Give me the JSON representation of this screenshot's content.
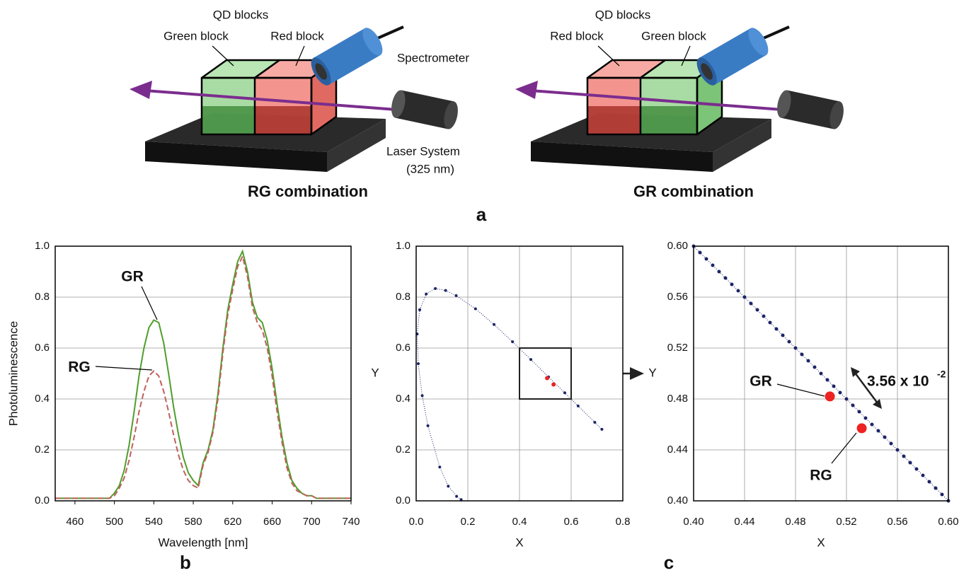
{
  "diagram": {
    "panel": "a",
    "left": {
      "group_label": "QD blocks",
      "block_left": "Green block",
      "block_right": "Red block",
      "spectrometer": "Spectrometer",
      "laser": "Laser System",
      "wavelength": "(325 nm)",
      "caption": "RG combination"
    },
    "right": {
      "group_label": "QD blocks",
      "block_left": "Red block",
      "block_right": "Green block",
      "caption": "GR combination"
    }
  },
  "panel_labels": [
    "b",
    "c"
  ],
  "chart_data": [
    {
      "type": "line",
      "xlabel": "Wavelength [nm]",
      "ylabel": "Photoluminescence",
      "x": [
        440,
        445,
        450,
        455,
        460,
        465,
        470,
        475,
        480,
        485,
        490,
        495,
        500,
        505,
        510,
        515,
        520,
        525,
        530,
        535,
        540,
        545,
        550,
        555,
        560,
        565,
        570,
        575,
        580,
        585,
        590,
        595,
        600,
        605,
        610,
        615,
        620,
        625,
        630,
        635,
        640,
        645,
        650,
        655,
        660,
        665,
        670,
        675,
        680,
        685,
        690,
        695,
        700,
        705,
        710,
        715,
        720,
        725,
        730,
        735,
        740
      ],
      "series": [
        {
          "name": "GR",
          "color": "#4f9e2c",
          "dashed": false,
          "values": [
            0.01,
            0.01,
            0.01,
            0.01,
            0.01,
            0.01,
            0.01,
            0.01,
            0.01,
            0.01,
            0.01,
            0.01,
            0.03,
            0.06,
            0.12,
            0.22,
            0.35,
            0.49,
            0.6,
            0.68,
            0.71,
            0.7,
            0.62,
            0.5,
            0.37,
            0.26,
            0.17,
            0.11,
            0.08,
            0.06,
            0.15,
            0.2,
            0.28,
            0.42,
            0.6,
            0.75,
            0.85,
            0.94,
            0.98,
            0.9,
            0.78,
            0.72,
            0.7,
            0.63,
            0.52,
            0.38,
            0.25,
            0.15,
            0.08,
            0.05,
            0.03,
            0.02,
            0.02,
            0.01,
            0.01,
            0.01,
            0.01,
            0.01,
            0.01,
            0.01,
            0.01
          ]
        },
        {
          "name": "RG",
          "color": "#c0605a",
          "dashed": true,
          "values": [
            0.01,
            0.01,
            0.01,
            0.01,
            0.01,
            0.01,
            0.01,
            0.01,
            0.01,
            0.01,
            0.01,
            0.01,
            0.02,
            0.05,
            0.09,
            0.16,
            0.25,
            0.35,
            0.43,
            0.49,
            0.51,
            0.49,
            0.43,
            0.35,
            0.26,
            0.18,
            0.12,
            0.08,
            0.06,
            0.05,
            0.14,
            0.19,
            0.27,
            0.4,
            0.58,
            0.73,
            0.83,
            0.92,
            0.96,
            0.88,
            0.76,
            0.7,
            0.67,
            0.6,
            0.49,
            0.35,
            0.23,
            0.13,
            0.07,
            0.04,
            0.03,
            0.02,
            0.02,
            0.01,
            0.01,
            0.01,
            0.01,
            0.01,
            0.01,
            0.01,
            0.01
          ]
        }
      ],
      "xlim": [
        440,
        740
      ],
      "xticks": [
        460,
        500,
        540,
        580,
        620,
        660,
        700,
        740
      ],
      "ylim": [
        0,
        1
      ],
      "yticks": [
        {
          "value": 0,
          "label": "0.0"
        },
        0.2,
        0.4,
        0.6,
        0.8,
        {
          "value": 1,
          "label": "1.0"
        }
      ],
      "grid": "y"
    },
    {
      "type": "scatter",
      "xlabel": "X",
      "ylabel": "Y",
      "series": [
        {
          "color": "#1c2466",
          "size": 2,
          "x": [
            0.1741,
            0.1566,
            0.1241,
            0.0913,
            0.0454,
            0.0235,
            0.0082,
            0.0039,
            0.0139,
            0.0389,
            0.0743,
            0.1142,
            0.1547,
            0.2296,
            0.3016,
            0.3731,
            0.4441,
            0.5125,
            0.5752,
            0.627,
            0.6915,
            0.719
          ],
          "values": [
            0.005,
            0.0177,
            0.0578,
            0.1327,
            0.295,
            0.4127,
            0.5384,
            0.6548,
            0.7502,
            0.812,
            0.8338,
            0.8262,
            0.8059,
            0.7543,
            0.6923,
            0.6245,
            0.5547,
            0.4866,
            0.4242,
            0.3725,
            0.3083,
            0.2809
          ]
        },
        {
          "color": "#ee2222",
          "size": 3,
          "x": [
            0.507,
            0.532
          ],
          "values": [
            0.482,
            0.457
          ]
        }
      ],
      "inset_box": {
        "xlim": [
          0.4,
          0.6
        ],
        "ylim": [
          0.4,
          0.6
        ]
      },
      "xlim": [
        0,
        0.8
      ],
      "xticks": [
        {
          "value": 0,
          "label": "0.0"
        },
        0.2,
        0.4,
        0.6,
        0.8
      ],
      "ylim": [
        0,
        1
      ],
      "yticks": [
        {
          "value": 0,
          "label": "0.0"
        },
        0.2,
        0.4,
        0.6,
        0.8,
        {
          "value": 1,
          "label": "1.0"
        }
      ],
      "grid": "both"
    },
    {
      "type": "scatter",
      "xlabel": "X",
      "ylabel": "Y",
      "series": [
        {
          "color": "#1c2466",
          "size": 2.5,
          "x": [
            0.4,
            0.405,
            0.41,
            0.415,
            0.42,
            0.425,
            0.43,
            0.435,
            0.44,
            0.445,
            0.45,
            0.455,
            0.46,
            0.465,
            0.47,
            0.475,
            0.48,
            0.485,
            0.49,
            0.495,
            0.5,
            0.505,
            0.51,
            0.515,
            0.52,
            0.525,
            0.53,
            0.535,
            0.54,
            0.545,
            0.55,
            0.555,
            0.56,
            0.565,
            0.57,
            0.575,
            0.58,
            0.585,
            0.59,
            0.595,
            0.6
          ],
          "values": [
            0.6,
            0.595,
            0.59,
            0.585,
            0.58,
            0.575,
            0.57,
            0.565,
            0.56,
            0.555,
            0.55,
            0.545,
            0.54,
            0.535,
            0.53,
            0.525,
            0.52,
            0.515,
            0.51,
            0.505,
            0.5,
            0.495,
            0.49,
            0.485,
            0.48,
            0.475,
            0.47,
            0.465,
            0.46,
            0.455,
            0.45,
            0.445,
            0.44,
            0.435,
            0.43,
            0.425,
            0.42,
            0.415,
            0.41,
            0.405,
            0.4
          ]
        },
        {
          "name": "GR",
          "color": "#ee2222",
          "size": 7,
          "x": [
            0.507
          ],
          "values": [
            0.482
          ]
        },
        {
          "name": "RG",
          "color": "#ee2222",
          "size": 7,
          "x": [
            0.532
          ],
          "values": [
            0.457
          ]
        }
      ],
      "annotation": {
        "text": "3.56 x 10",
        "superscript": "-2"
      },
      "xlim": [
        0.4,
        0.6
      ],
      "xticks": [
        {
          "value": 0.4,
          "label": "0.40"
        },
        0.44,
        0.48,
        0.52,
        0.56,
        {
          "value": 0.6,
          "label": "0.60"
        }
      ],
      "ylim": [
        0.4,
        0.6
      ],
      "yticks": [
        {
          "value": 0.4,
          "label": "0.40"
        },
        0.44,
        0.48,
        0.52,
        0.56,
        {
          "value": 0.6,
          "label": "0.60"
        }
      ],
      "grid": "both"
    }
  ]
}
